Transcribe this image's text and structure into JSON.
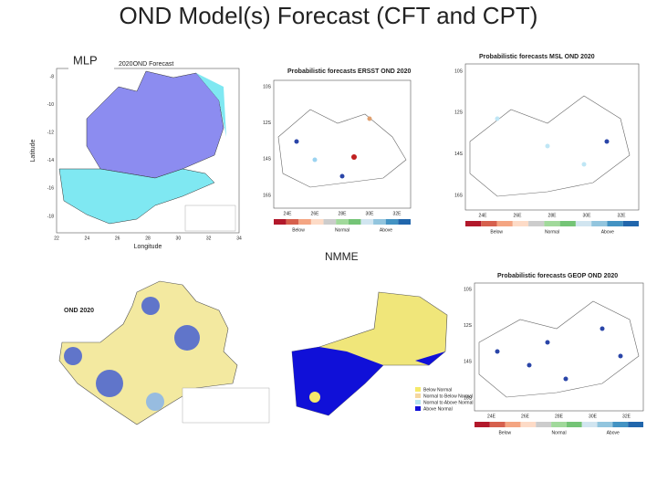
{
  "title": "OND Model(s) Forecast  (CFT and CPT)",
  "labels": {
    "mlp": "MLP",
    "nmme": "NMME"
  },
  "panels": [
    {
      "title": "2020OND Forecast",
      "x_label": "Longitude",
      "y_label": "Latitude",
      "xticks": [
        22,
        24,
        26,
        28,
        30,
        32,
        34
      ],
      "yticks": [
        -8,
        -10,
        -12,
        -14,
        -16,
        -18
      ]
    },
    {
      "title": "Probabilistic forecasts ERSST OND 2020",
      "xticks": [
        "24E",
        "26E",
        "28E",
        "30E",
        "32E"
      ],
      "yticks": [
        "10S",
        "12S",
        "14S",
        "16S"
      ],
      "legend": [
        "Below",
        "Normal",
        "Above"
      ]
    },
    {
      "title": "Probabilistic forecasts MSL OND 2020",
      "xticks": [
        "24E",
        "26E",
        "28E",
        "30E",
        "32E"
      ],
      "yticks": [
        "10S",
        "12S",
        "14S",
        "16S"
      ],
      "legend": [
        "Below",
        "Normal",
        "Above"
      ]
    },
    {
      "title": "OND 2020"
    },
    {
      "legend": [
        "Below Normal",
        "Normal to Below Normal",
        "Normal to Above Normal",
        "Above Normal"
      ]
    },
    {
      "title": "Probabilistic forecasts GEOP OND 2020",
      "xticks": [
        "24E",
        "26E",
        "28E",
        "30E",
        "32E"
      ],
      "yticks": [
        "10S",
        "12S",
        "14S",
        "16S"
      ],
      "legend": [
        "Below",
        "Normal",
        "Above"
      ]
    }
  ]
}
